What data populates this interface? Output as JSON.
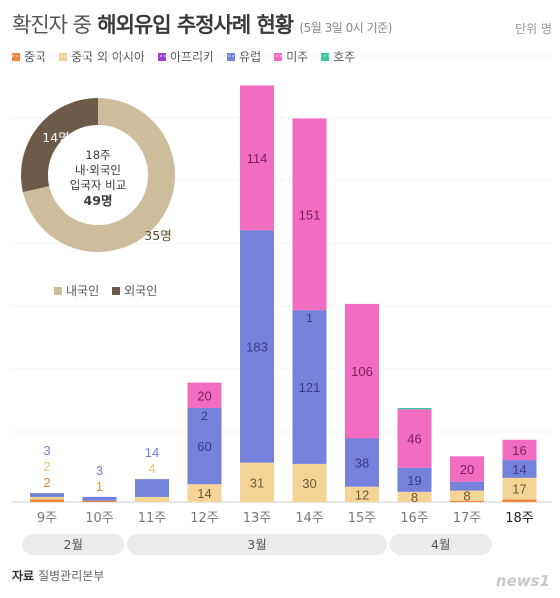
{
  "header": {
    "title_part1": "확진자 중",
    "title_part2": "해외유입 추정사례 현황",
    "subtitle": "(5월 3일 0시 기준)",
    "unit": "단위 명"
  },
  "legend": [
    {
      "label": "중국",
      "color": "#f0873d"
    },
    {
      "label": "중국 외 아시아",
      "color": "#f5d595"
    },
    {
      "label": "아프리카",
      "color": "#9b3fd8"
    },
    {
      "label": "유럽",
      "color": "#7482dc"
    },
    {
      "label": "미주",
      "color": "#f26cc2"
    },
    {
      "label": "호주",
      "color": "#35c9a0"
    }
  ],
  "chart_data": {
    "type": "bar",
    "stacked": true,
    "categories": [
      "9주",
      "10주",
      "11주",
      "12주",
      "13주",
      "14주",
      "15주",
      "16주",
      "17주",
      "18주"
    ],
    "series": [
      {
        "name": "중국",
        "values": [
          2,
          1,
          0,
          0,
          0,
          0,
          0,
          0,
          1,
          2
        ]
      },
      {
        "name": "중국 외 아시아",
        "values": [
          2,
          0,
          4,
          14,
          31,
          30,
          12,
          8,
          8,
          17
        ]
      },
      {
        "name": "아프리카",
        "values": [
          0,
          0,
          0,
          0,
          0,
          0,
          0,
          0,
          0,
          0
        ]
      },
      {
        "name": "유럽",
        "values": [
          3,
          3,
          14,
          60,
          183,
          121,
          38,
          19,
          7,
          14
        ]
      },
      {
        "name": "미주",
        "values": [
          0,
          0,
          0,
          20,
          114,
          151,
          106,
          46,
          20,
          16
        ]
      },
      {
        "name": "호주",
        "values": [
          0,
          0,
          0,
          0,
          0,
          0,
          0,
          1,
          0,
          0
        ]
      }
    ],
    "extra_labels": [
      {
        "category": "12주",
        "text": "2",
        "series": "유럽"
      },
      {
        "category": "14주",
        "text": "1",
        "series": "유럽"
      }
    ],
    "months": [
      {
        "label": "2월",
        "from": "9주",
        "to": "10주"
      },
      {
        "label": "3월",
        "from": "11주",
        "to": "15주"
      },
      {
        "label": "4월",
        "from": "16주",
        "to": "17주"
      }
    ],
    "ylim": [
      0,
      330
    ],
    "grid": true
  },
  "donut": {
    "center_week": "18주",
    "center_line2": "내·외국인",
    "center_line3": "입국자 비교",
    "center_total": "49명",
    "slices": [
      {
        "name": "내국인",
        "value": 35,
        "label": "35명",
        "color": "#cdbd9d"
      },
      {
        "name": "외국인",
        "value": 14,
        "label": "14명",
        "color": "#6e5a48"
      }
    ]
  },
  "footer": {
    "source_prefix": "자료",
    "source": "질병관리본부",
    "logo": "news1"
  }
}
